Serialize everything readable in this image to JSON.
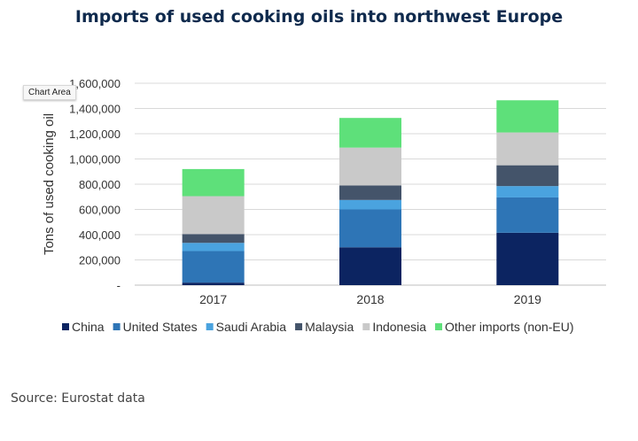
{
  "title": "Imports of used cooking oils into northwest Europe",
  "tooltip": "Chart Area",
  "source": "Source: Eurostat data",
  "chart_data": {
    "type": "bar",
    "stacked": true,
    "title": "Imports of used cooking oils into northwest Europe",
    "xlabel": "",
    "ylabel": "Tons of used cooking oil",
    "ylim": [
      0,
      1600000
    ],
    "yticks": [
      "-",
      "200,000",
      "400,000",
      "600,000",
      "800,000",
      "1,000,000",
      "1,200,000",
      "1,400,000",
      "1,600,000"
    ],
    "grid": true,
    "legend_position": "bottom",
    "categories": [
      "2017",
      "2018",
      "2019"
    ],
    "series": [
      {
        "name": "China",
        "color": "#0c2461",
        "values": [
          20000,
          300000,
          415000
        ]
      },
      {
        "name": "United States",
        "color": "#2e75b6",
        "values": [
          250000,
          300000,
          280000
        ]
      },
      {
        "name": "Saudi Arabia",
        "color": "#4aa3df",
        "values": [
          65000,
          75000,
          90000
        ]
      },
      {
        "name": "Malaysia",
        "color": "#44546a",
        "values": [
          70000,
          115000,
          165000
        ]
      },
      {
        "name": "Indonesia",
        "color": "#c9c9c9",
        "values": [
          300000,
          300000,
          260000
        ]
      },
      {
        "name": "Other imports (non-EU)",
        "color": "#5ee07a",
        "values": [
          215000,
          235000,
          255000
        ]
      }
    ]
  }
}
